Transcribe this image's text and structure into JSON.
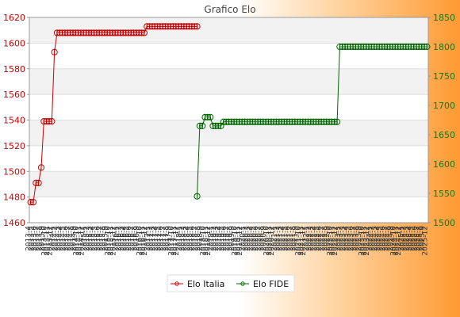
{
  "chart_data": {
    "type": "line",
    "title": "Grafico Elo",
    "colors": {
      "italia": "#cc0000",
      "fide": "#006600",
      "band": "#f2f2f2",
      "gridline": "#dddddd"
    },
    "y_left": {
      "min": 1460,
      "max": 1620,
      "ticks": [
        1460,
        1480,
        1500,
        1520,
        1540,
        1560,
        1580,
        1600,
        1620
      ]
    },
    "y_right": {
      "min": 1500,
      "max": 1850,
      "ticks": [
        1500,
        1550,
        1600,
        1650,
        1700,
        1750,
        1800,
        1850
      ]
    },
    "x_first": "2013-4",
    "x_last": "2025-12",
    "n_points": 151,
    "grid": true,
    "legend_position": "bottom-center",
    "series": [
      {
        "name": "Elo Italia",
        "axis": "left",
        "runs": [
          {
            "from": 0,
            "to": 1,
            "value": 1476
          },
          {
            "from": 2,
            "to": 3,
            "value": 1491
          },
          {
            "from": 4,
            "to": 4,
            "value": 1503
          },
          {
            "from": 5,
            "to": 8,
            "value": 1539
          },
          {
            "from": 9,
            "to": 9,
            "value": 1593
          },
          {
            "from": 10,
            "to": 43,
            "value": 1608
          },
          {
            "from": 44,
            "to": 63,
            "value": 1613
          }
        ]
      },
      {
        "name": "Elo FIDE",
        "axis": "right",
        "runs": [
          {
            "from": 63,
            "to": 63,
            "value": 1545
          },
          {
            "from": 64,
            "to": 65,
            "value": 1665
          },
          {
            "from": 66,
            "to": 68,
            "value": 1680
          },
          {
            "from": 69,
            "to": 72,
            "value": 1665
          },
          {
            "from": 73,
            "to": 116,
            "value": 1672
          },
          {
            "from": 117,
            "to": 150,
            "value": 1800
          }
        ]
      }
    ]
  }
}
